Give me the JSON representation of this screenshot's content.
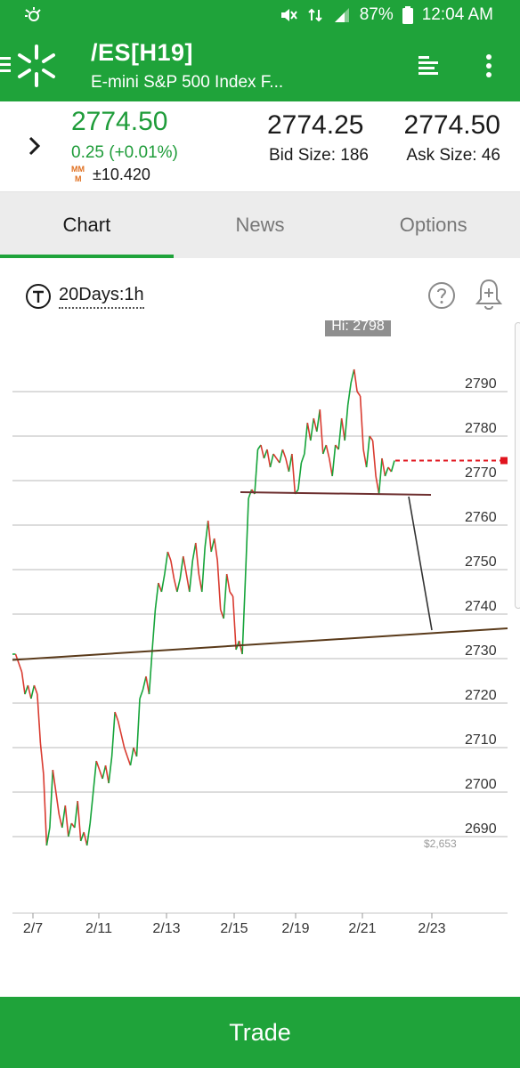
{
  "status_bar": {
    "battery": "87%",
    "time": "12:04 AM"
  },
  "app_bar": {
    "symbol": "/ES[H19]",
    "description": "E-mini S&P 500 Index F..."
  },
  "quote": {
    "last": "2774.50",
    "change": "0.25 (+0.01%)",
    "mm_value": "±10.420",
    "bid": "2774.25",
    "bid_size": "Bid Size: 186",
    "ask": "2774.50",
    "ask_size": "Ask Size: 46"
  },
  "tabs": [
    {
      "label": "Chart"
    },
    {
      "label": "News"
    },
    {
      "label": "Options"
    }
  ],
  "chart_toolbar": {
    "period": "20Days:1h"
  },
  "colors": {
    "brand_green": "#1fa33a",
    "up_candle": "#16a43a",
    "down_candle": "#d93b30",
    "trendline": "#5a3a1a",
    "price_marker": "#e0141e"
  },
  "chart_data": {
    "type": "line",
    "title": "",
    "xlabel": "",
    "ylabel": "",
    "ylim": [
      2683,
      2802
    ],
    "yticks": [
      2690,
      2700,
      2710,
      2720,
      2730,
      2740,
      2750,
      2760,
      2770,
      2780,
      2790
    ],
    "ytick_labels": [
      "2690",
      "2700",
      "2710",
      "2720",
      "2730",
      "2740",
      "2750",
      "2760",
      "2770",
      "2780",
      "2790"
    ],
    "xtick_labels": [
      "2/7",
      "2/11",
      "2/13",
      "2/15",
      "2/19",
      "2/21",
      "2/23"
    ],
    "hi_label": "Hi: 2798",
    "low_marker_label": "$2,653",
    "last_price": 2774.5,
    "series": [
      {
        "values": [
          2731,
          2731,
          2729,
          2727,
          2722,
          2724,
          2721,
          2724,
          2722,
          2711,
          2704,
          2688,
          2692,
          2705,
          2700,
          2695,
          2692,
          2697,
          2690,
          2693,
          2692,
          2698,
          2689,
          2691,
          2688,
          2693,
          2700,
          2707,
          2705,
          2703,
          2706,
          2702,
          2708,
          2718,
          2716,
          2713,
          2710,
          2708,
          2706,
          2710,
          2708,
          2721,
          2723,
          2726,
          2722,
          2732,
          2741,
          2747,
          2745,
          2749,
          2754,
          2752,
          2748,
          2745,
          2748,
          2753,
          2749,
          2745,
          2752,
          2756,
          2749,
          2745,
          2755,
          2761,
          2754,
          2757,
          2752,
          2741,
          2739,
          2749,
          2745,
          2744,
          2732,
          2734,
          2731,
          2748,
          2766,
          2768,
          2767,
          2777,
          2778,
          2775,
          2777,
          2773,
          2776,
          2775,
          2774,
          2777,
          2775,
          2772,
          2776,
          2767,
          2768,
          2774,
          2776,
          2783,
          2779,
          2784,
          2781,
          2786,
          2776,
          2778,
          2775,
          2771,
          2778,
          2777,
          2784,
          2779,
          2787,
          2792,
          2795,
          2790,
          2789,
          2777,
          2773,
          2780,
          2779,
          2771,
          2767,
          2775,
          2771,
          2773,
          2772,
          2774.5
        ]
      }
    ]
  }
}
